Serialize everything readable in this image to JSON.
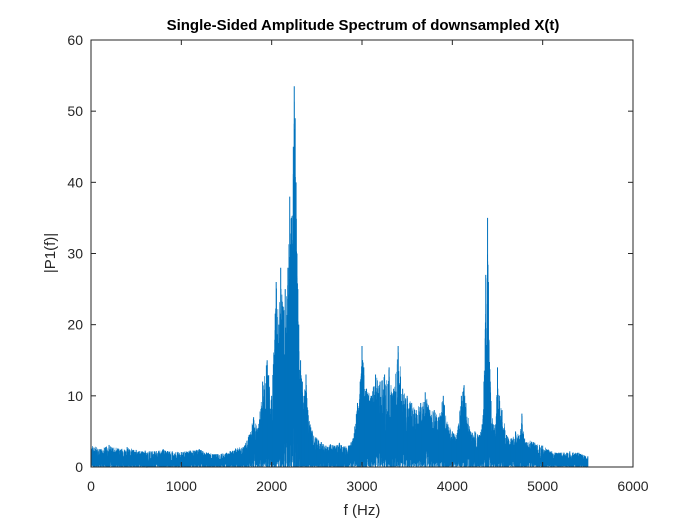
{
  "chart_data": {
    "type": "line",
    "title": "Single-Sided Amplitude Spectrum of downsampled X(t)",
    "xlabel": "f (Hz)",
    "ylabel": "|P1(f)|",
    "xlim": [
      0,
      6000
    ],
    "ylim": [
      0,
      60
    ],
    "xticks": [
      0,
      1000,
      2000,
      3000,
      4000,
      5000,
      6000
    ],
    "yticks": [
      0,
      10,
      20,
      30,
      40,
      50,
      60
    ],
    "xtick_labels": [
      "0",
      "1000",
      "2000",
      "3000",
      "4000",
      "5000",
      "6000"
    ],
    "ytick_labels": [
      "0",
      "10",
      "20",
      "30",
      "40",
      "50",
      "60"
    ],
    "grid": false,
    "line_color": "#0072BD",
    "series": [
      {
        "x": [
          0,
          100,
          200,
          300,
          400,
          500,
          600,
          700,
          800,
          900,
          1000,
          1100,
          1200,
          1300,
          1400,
          1500,
          1600,
          1700,
          1750,
          1800,
          1850,
          1900,
          1950,
          2000,
          2050,
          2080,
          2100,
          2130,
          2150,
          2180,
          2200,
          2220,
          2240,
          2250,
          2260,
          2270,
          2280,
          2290,
          2300,
          2320,
          2340,
          2360,
          2380,
          2400,
          2450,
          2500,
          2550,
          2600,
          2650,
          2700,
          2750,
          2800,
          2850,
          2900,
          2950,
          2980,
          3000,
          3020,
          3050,
          3100,
          3150,
          3200,
          3250,
          3300,
          3350,
          3400,
          3450,
          3500,
          3550,
          3600,
          3650,
          3700,
          3750,
          3800,
          3850,
          3900,
          3950,
          4000,
          4050,
          4100,
          4130,
          4150,
          4200,
          4250,
          4300,
          4330,
          4350,
          4370,
          4380,
          4390,
          4400,
          4420,
          4450,
          4480,
          4500,
          4520,
          4550,
          4600,
          4650,
          4700,
          4750,
          4770,
          4800,
          4900,
          5000,
          5100,
          5200,
          5300,
          5400,
          5500
        ],
        "y": [
          3.2,
          2.5,
          3.1,
          2.6,
          2.8,
          2.4,
          2.3,
          2.2,
          2.5,
          2.2,
          2.1,
          2.3,
          2.5,
          2.0,
          1.8,
          2.0,
          2.6,
          3.0,
          4.5,
          7.0,
          5.5,
          12.0,
          15.0,
          10.0,
          26.0,
          20.0,
          28.0,
          22.0,
          25.0,
          28.0,
          38.0,
          35.0,
          45.0,
          53.5,
          49.0,
          40.0,
          30.0,
          25.0,
          20.0,
          15.0,
          12.0,
          10.0,
          13.0,
          8.0,
          5.0,
          4.0,
          3.5,
          3.0,
          3.2,
          3.0,
          3.4,
          2.9,
          3.0,
          4.0,
          9.0,
          12.0,
          17.0,
          14.0,
          11.0,
          10.0,
          13.0,
          12.0,
          13.0,
          14.0,
          11.0,
          17.0,
          11.0,
          10.0,
          9.0,
          8.0,
          9.0,
          10.5,
          8.0,
          8.0,
          7.0,
          10.0,
          6.0,
          5.0,
          4.5,
          10.0,
          11.5,
          9.0,
          5.0,
          5.0,
          4.5,
          6.0,
          12.0,
          27.0,
          17.0,
          35.0,
          26.0,
          12.0,
          6.0,
          6.0,
          14.0,
          10.0,
          8.0,
          4.5,
          4.0,
          5.0,
          4.5,
          7.5,
          4.0,
          3.5,
          3.0,
          2.2,
          2.0,
          2.2,
          2.0,
          1.5
        ]
      }
    ]
  }
}
